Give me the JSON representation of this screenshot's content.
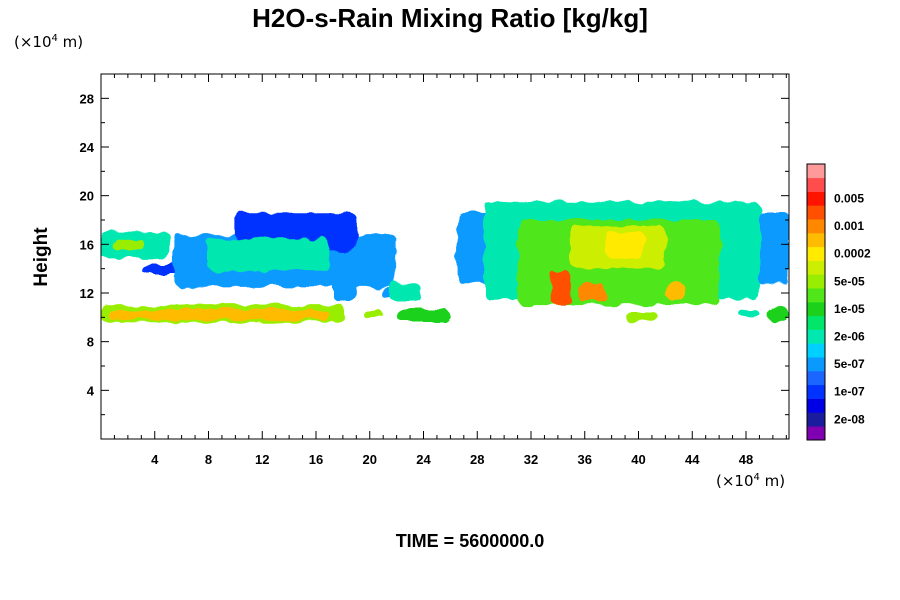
{
  "chart_data": {
    "type": "heatmap",
    "title": "H2O-s-Rain Mixing Ratio [kg/kg]",
    "xlabel": "",
    "ylabel": "Height",
    "x_unit": {
      "prefix": "(×10",
      "exp": "4",
      "suffix": " m)"
    },
    "y_unit": {
      "prefix": "(×10",
      "exp": "4",
      "suffix": " m)"
    },
    "xlim": [
      0,
      51.2
    ],
    "ylim": [
      0,
      30
    ],
    "x_ticks": [
      4,
      8,
      12,
      16,
      20,
      24,
      28,
      32,
      36,
      40,
      44,
      48
    ],
    "y_ticks": [
      4,
      8,
      12,
      16,
      20,
      24,
      28
    ],
    "footer": "TIME = 5600000.0",
    "colorbar": {
      "colors": [
        "#7f00b0",
        "#1b1b9e",
        "#0000e6",
        "#0033ff",
        "#1a66ff",
        "#0a9aff",
        "#00d0ff",
        "#00e8b0",
        "#00e66a",
        "#1cd11c",
        "#50e61a",
        "#99ee00",
        "#ccee00",
        "#ffea00",
        "#ffbb00",
        "#ff8800",
        "#ff5000",
        "#ff1400",
        "#ff4c4c",
        "#ff9a9a"
      ],
      "labels": [
        "2e-08",
        "1e-07",
        "5e-07",
        "2e-06",
        "1e-05",
        "5e-05",
        "0.0002",
        "0.001",
        "0.005"
      ],
      "label_positions": [
        1,
        3,
        5,
        7,
        9,
        11,
        13,
        15,
        17
      ]
    },
    "regions": [
      {
        "type": "base",
        "x1": 0,
        "x2": 5.2,
        "y1": 14.8,
        "y2": 17.0,
        "level": 7
      },
      {
        "type": "base",
        "x1": 0.8,
        "x2": 3.2,
        "y1": 15.5,
        "y2": 16.5,
        "level": 11
      },
      {
        "type": "base",
        "x1": 3.0,
        "x2": 6.5,
        "y1": 13.6,
        "y2": 14.3,
        "level": 3
      },
      {
        "type": "base",
        "x1": 5.5,
        "x2": 22.0,
        "y1": 12.5,
        "y2": 16.8,
        "level": 5
      },
      {
        "type": "base",
        "x1": 10.0,
        "x2": 19.0,
        "y1": 15.5,
        "y2": 18.6,
        "level": 3
      },
      {
        "type": "base",
        "x1": 8.0,
        "x2": 17.0,
        "y1": 13.8,
        "y2": 16.5,
        "level": 7
      },
      {
        "type": "base",
        "x1": 17.3,
        "x2": 19.0,
        "y1": 11.3,
        "y2": 12.9,
        "level": 5
      },
      {
        "type": "base",
        "x1": 20.8,
        "x2": 22.0,
        "y1": 11.6,
        "y2": 12.4,
        "level": 5
      },
      {
        "type": "base",
        "x1": 21.5,
        "x2": 23.8,
        "y1": 11.3,
        "y2": 12.8,
        "level": 7
      },
      {
        "type": "base",
        "x1": 0,
        "x2": 18.2,
        "y1": 9.6,
        "y2": 11.0,
        "level": 11
      },
      {
        "type": "base",
        "x1": 0.5,
        "x2": 17.0,
        "y1": 9.8,
        "y2": 10.6,
        "level": 14
      },
      {
        "type": "base",
        "x1": 19.5,
        "x2": 21.0,
        "y1": 9.9,
        "y2": 10.6,
        "level": 11
      },
      {
        "type": "base",
        "x1": 22.0,
        "x2": 26.0,
        "y1": 9.7,
        "y2": 10.6,
        "level": 9
      },
      {
        "type": "base",
        "x1": 26.5,
        "x2": 51.2,
        "y1": 12.8,
        "y2": 18.7,
        "level": 5
      },
      {
        "type": "base",
        "x1": 28.5,
        "x2": 49.0,
        "y1": 11.5,
        "y2": 19.5,
        "level": 7
      },
      {
        "type": "base",
        "x1": 31.0,
        "x2": 46.0,
        "y1": 11.0,
        "y2": 18.0,
        "level": 10
      },
      {
        "type": "base",
        "x1": 35.0,
        "x2": 42.0,
        "y1": 14.0,
        "y2": 17.5,
        "level": 12
      },
      {
        "type": "base",
        "x1": 37.5,
        "x2": 40.5,
        "y1": 15.0,
        "y2": 17.0,
        "level": 13
      },
      {
        "type": "base",
        "x1": 33.5,
        "x2": 35.0,
        "y1": 11.0,
        "y2": 13.8,
        "level": 16
      },
      {
        "type": "base",
        "x1": 35.5,
        "x2": 37.5,
        "y1": 11.3,
        "y2": 12.8,
        "level": 15
      },
      {
        "type": "base",
        "x1": 42.0,
        "x2": 43.5,
        "y1": 11.5,
        "y2": 12.8,
        "level": 14
      },
      {
        "type": "base",
        "x1": 39.0,
        "x2": 41.5,
        "y1": 9.6,
        "y2": 10.4,
        "level": 11
      },
      {
        "type": "base",
        "x1": 47.5,
        "x2": 49.0,
        "y1": 10.0,
        "y2": 10.6,
        "level": 7
      },
      {
        "type": "base",
        "x1": 49.5,
        "x2": 51.2,
        "y1": 9.8,
        "y2": 10.8,
        "level": 9
      }
    ]
  }
}
